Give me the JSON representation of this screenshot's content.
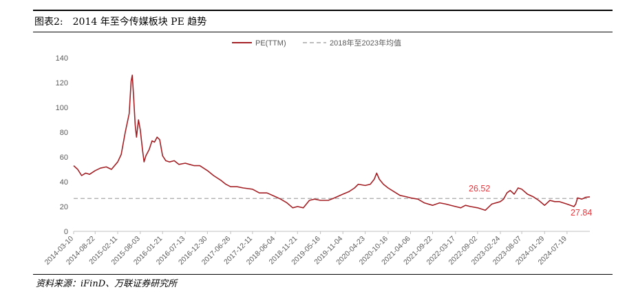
{
  "header": {
    "figure_label": "图表2:",
    "title": "2014 年至今传媒板块 PE 趋势"
  },
  "source": "资料来源：iFinD、万联证券研究所",
  "colors": {
    "pe_line": "#a31f24",
    "avg_line": "#a6a6a6",
    "annotation": "#e8343b",
    "axis": "#bfbfbf",
    "text": "#595959"
  },
  "chart_data": {
    "type": "line",
    "legend_position": "top-center",
    "grid": false,
    "ylim": [
      0,
      140
    ],
    "y_ticks": [
      0,
      20,
      40,
      60,
      80,
      100,
      120,
      140
    ],
    "x_range": [
      "2014-03-10",
      "2025-01-10"
    ],
    "x_tick_labels": [
      "2014-03-10",
      "2014-08-22",
      "2015-02-11",
      "2015-08-03",
      "2016-01-21",
      "2016-07-13",
      "2016-12-30",
      "2017-06-26",
      "2017-12-11",
      "2018-06-04",
      "2018-11-21",
      "2019-05-16",
      "2019-11-04",
      "2020-04-23",
      "2020-10-16",
      "2021-04-06",
      "2021-09-22",
      "2022-03-17",
      "2022-09-02",
      "2023-02-24",
      "2023-08-07",
      "2024-01-29",
      "2024-07-19"
    ],
    "series": [
      {
        "name": "PE(TTM)",
        "style": "solid",
        "points": [
          [
            "2014-03-10",
            53
          ],
          [
            "2014-04-10",
            50
          ],
          [
            "2014-05-10",
            45
          ],
          [
            "2014-06-10",
            47
          ],
          [
            "2014-07-10",
            46
          ],
          [
            "2014-08-22",
            49
          ],
          [
            "2014-10-01",
            51
          ],
          [
            "2014-11-15",
            52
          ],
          [
            "2014-12-25",
            50
          ],
          [
            "2015-02-11",
            56
          ],
          [
            "2015-03-10",
            62
          ],
          [
            "2015-04-10",
            80
          ],
          [
            "2015-05-10",
            95
          ],
          [
            "2015-05-25",
            121
          ],
          [
            "2015-06-03",
            126
          ],
          [
            "2015-06-12",
            110
          ],
          [
            "2015-06-25",
            86
          ],
          [
            "2015-07-05",
            76
          ],
          [
            "2015-07-20",
            90
          ],
          [
            "2015-08-03",
            82
          ],
          [
            "2015-08-20",
            66
          ],
          [
            "2015-09-01",
            56
          ],
          [
            "2015-09-15",
            61
          ],
          [
            "2015-10-10",
            66
          ],
          [
            "2015-11-01",
            73
          ],
          [
            "2015-11-20",
            72
          ],
          [
            "2015-12-10",
            76
          ],
          [
            "2015-12-30",
            74
          ],
          [
            "2016-01-21",
            61
          ],
          [
            "2016-02-15",
            57
          ],
          [
            "2016-03-15",
            56
          ],
          [
            "2016-04-20",
            57
          ],
          [
            "2016-05-25",
            54
          ],
          [
            "2016-07-13",
            55
          ],
          [
            "2016-08-15",
            54
          ],
          [
            "2016-09-20",
            53
          ],
          [
            "2016-11-01",
            53
          ],
          [
            "2016-12-30",
            49
          ],
          [
            "2017-02-15",
            45
          ],
          [
            "2017-04-15",
            41
          ],
          [
            "2017-05-20",
            38
          ],
          [
            "2017-06-26",
            36
          ],
          [
            "2017-08-15",
            36
          ],
          [
            "2017-10-01",
            35
          ],
          [
            "2017-12-11",
            34
          ],
          [
            "2018-02-01",
            31
          ],
          [
            "2018-04-01",
            31
          ],
          [
            "2018-06-04",
            28
          ],
          [
            "2018-07-15",
            26
          ],
          [
            "2018-09-01",
            23
          ],
          [
            "2018-10-15",
            19
          ],
          [
            "2018-11-21",
            20
          ],
          [
            "2019-01-05",
            19
          ],
          [
            "2019-02-20",
            25
          ],
          [
            "2019-04-01",
            26
          ],
          [
            "2019-05-16",
            25
          ],
          [
            "2019-07-15",
            25
          ],
          [
            "2019-09-01",
            27
          ],
          [
            "2019-11-04",
            30
          ],
          [
            "2019-12-20",
            32
          ],
          [
            "2020-02-01",
            35
          ],
          [
            "2020-03-01",
            38
          ],
          [
            "2020-04-23",
            37
          ],
          [
            "2020-06-01",
            38
          ],
          [
            "2020-07-01",
            42
          ],
          [
            "2020-07-20",
            47
          ],
          [
            "2020-08-10",
            42
          ],
          [
            "2020-09-10",
            38
          ],
          [
            "2020-10-16",
            35
          ],
          [
            "2020-12-01",
            32
          ],
          [
            "2021-01-15",
            29
          ],
          [
            "2021-03-01",
            28
          ],
          [
            "2021-04-06",
            27
          ],
          [
            "2021-06-01",
            26
          ],
          [
            "2021-07-20",
            23
          ],
          [
            "2021-09-22",
            21
          ],
          [
            "2021-11-15",
            23
          ],
          [
            "2022-01-01",
            22
          ],
          [
            "2022-03-17",
            20
          ],
          [
            "2022-04-26",
            19
          ],
          [
            "2022-06-01",
            21
          ],
          [
            "2022-07-10",
            20
          ],
          [
            "2022-09-02",
            19
          ],
          [
            "2022-10-31",
            17
          ],
          [
            "2022-12-20",
            22
          ],
          [
            "2023-02-24",
            24
          ],
          [
            "2023-03-20",
            26
          ],
          [
            "2023-04-15",
            31
          ],
          [
            "2023-05-10",
            33
          ],
          [
            "2023-06-10",
            30
          ],
          [
            "2023-07-10",
            35
          ],
          [
            "2023-08-07",
            34
          ],
          [
            "2023-09-20",
            30
          ],
          [
            "2023-11-01",
            28
          ],
          [
            "2023-12-15",
            25
          ],
          [
            "2024-01-29",
            21
          ],
          [
            "2024-03-10",
            25
          ],
          [
            "2024-04-15",
            24
          ],
          [
            "2024-05-20",
            24
          ],
          [
            "2024-07-19",
            22
          ],
          [
            "2024-09-10",
            20
          ],
          [
            "2024-09-24",
            22
          ],
          [
            "2024-10-08",
            27
          ],
          [
            "2024-11-10",
            26
          ],
          [
            "2024-12-10",
            27.5
          ],
          [
            "2025-01-10",
            27.84
          ]
        ]
      },
      {
        "name": "2018年至2023年均值",
        "style": "dashed",
        "value": 26.52
      }
    ],
    "annotations": [
      {
        "text": "26.52",
        "value": 26.52
      },
      {
        "text": "27.84",
        "value": 27.84
      }
    ]
  }
}
